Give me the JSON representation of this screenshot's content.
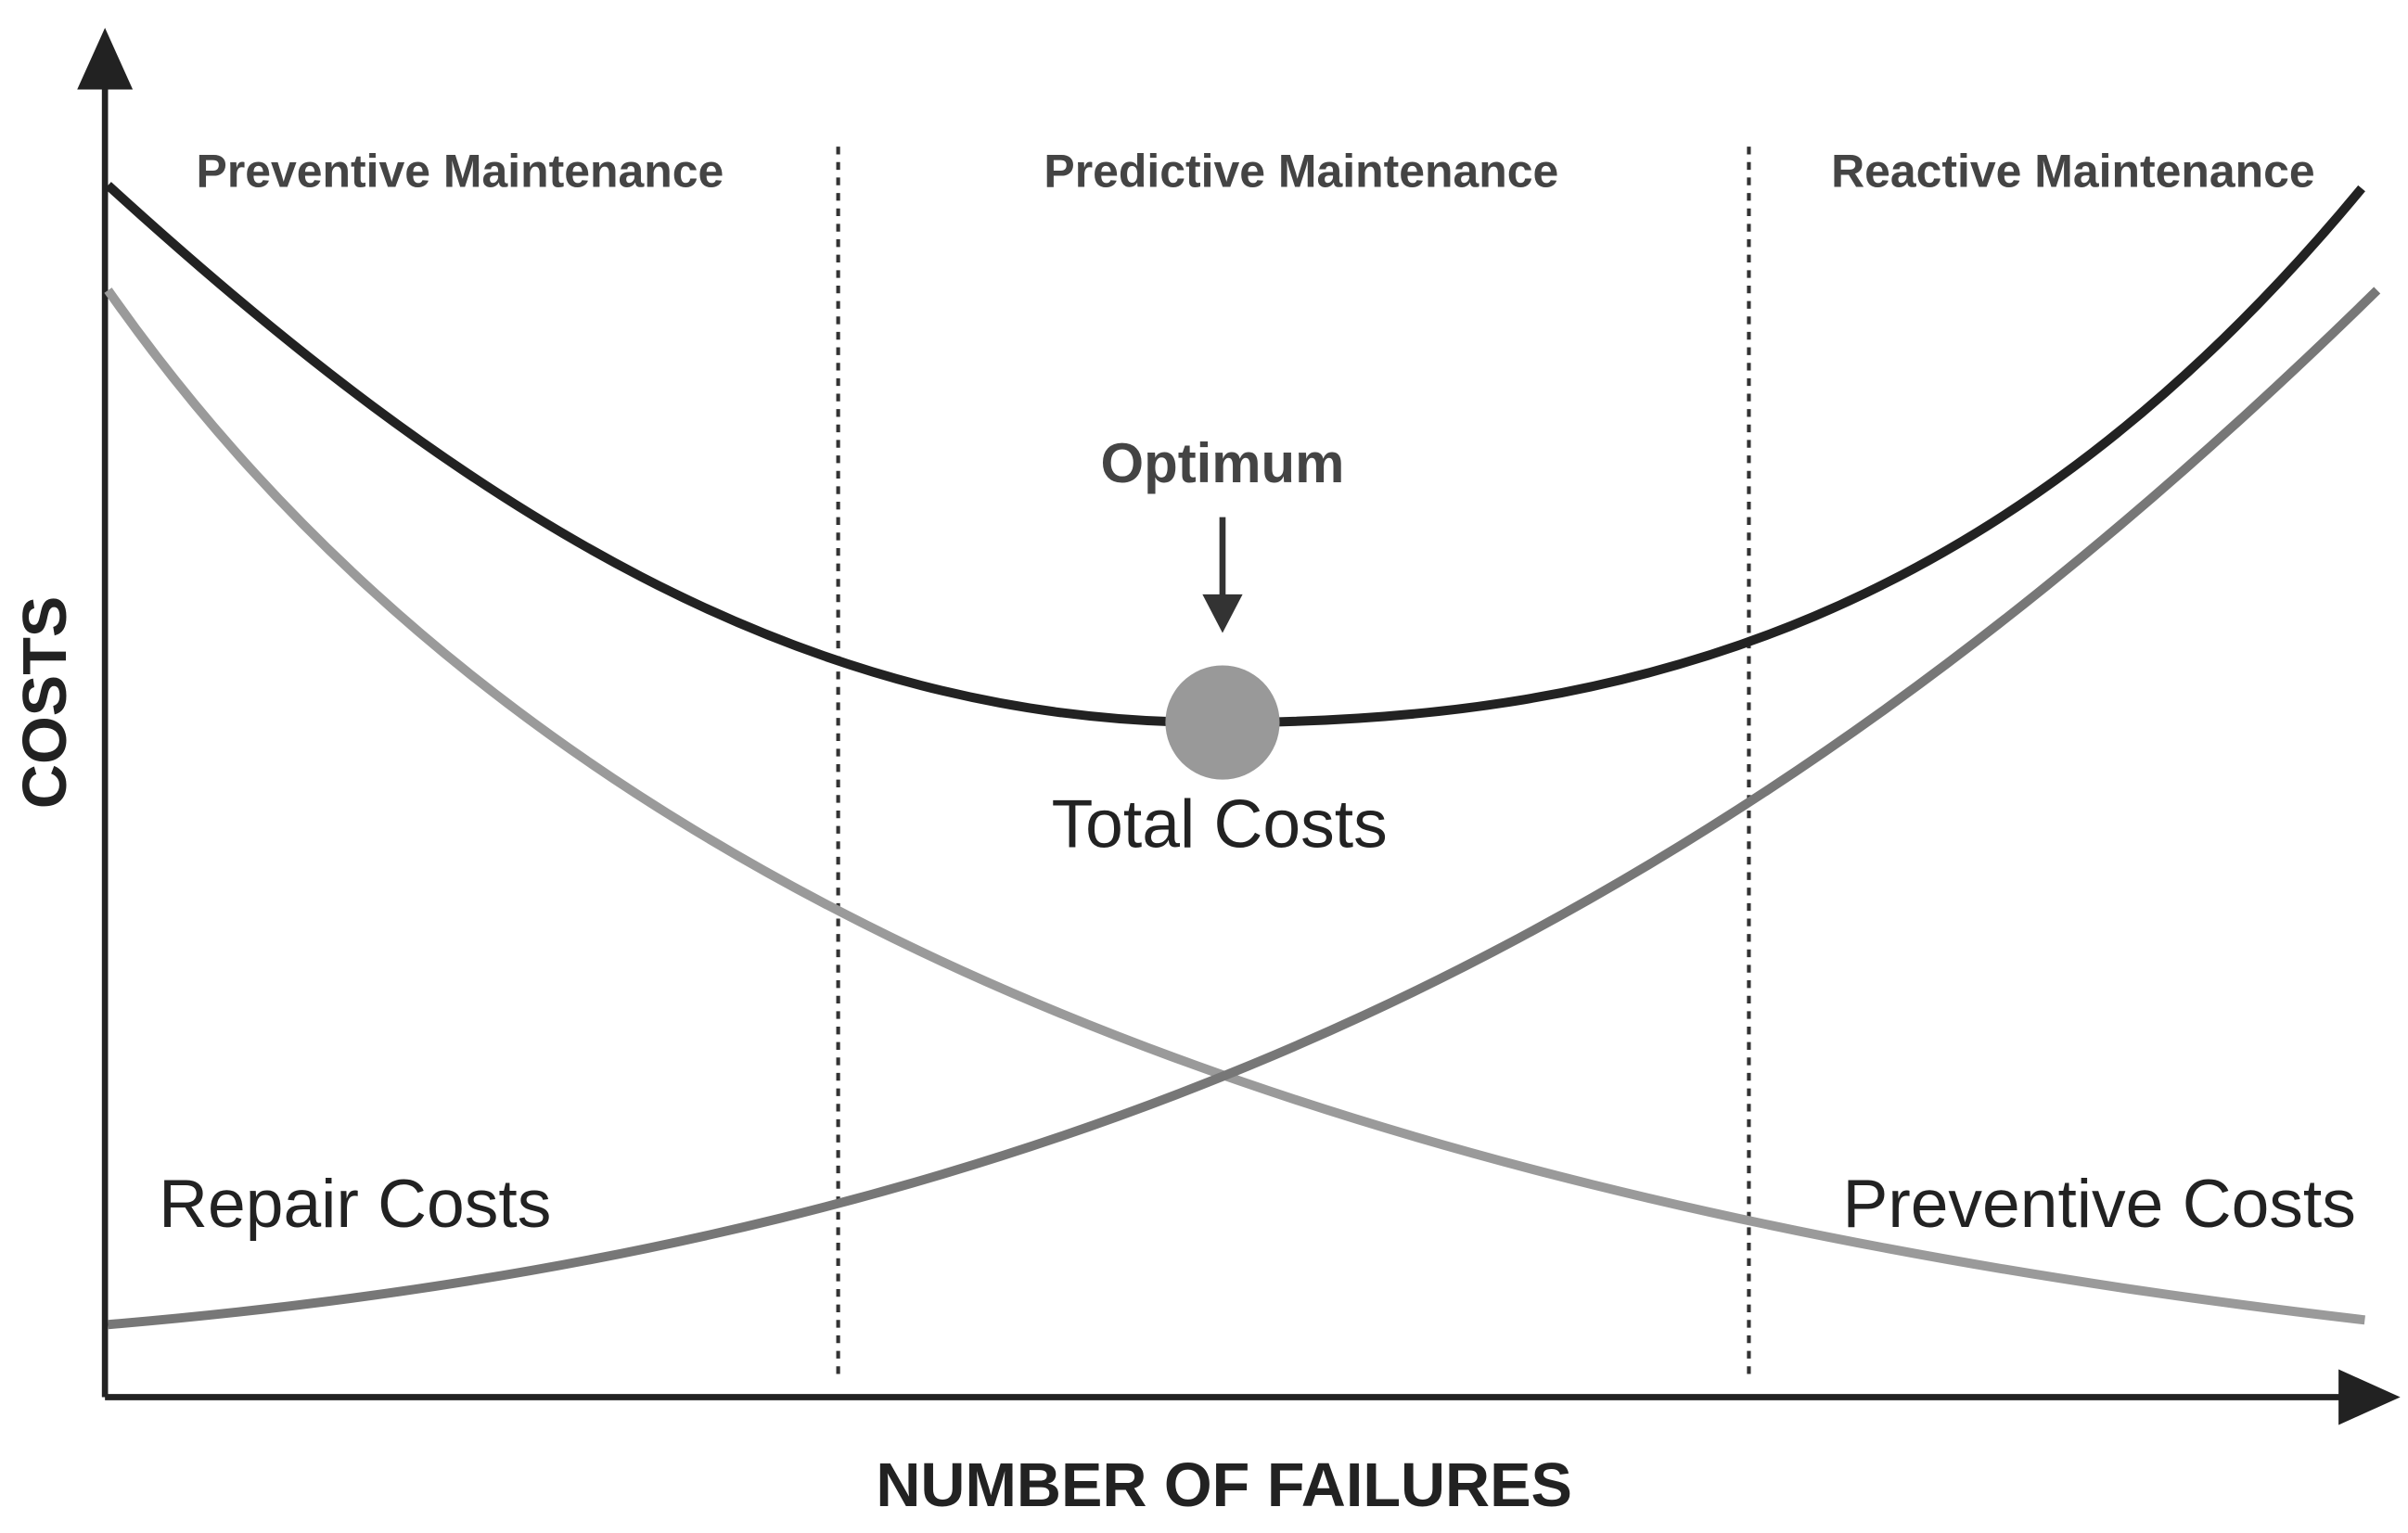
{
  "axes": {
    "y_label": "COSTS",
    "x_label": "NUMBER OF FAILURES"
  },
  "zones": [
    "Preventive Maintenance",
    "Predictive Maintenance",
    "Reactive Maintenance"
  ],
  "annotations": {
    "optimum": "Optimum",
    "total_costs": "Total Costs",
    "repair_costs": "Repair Costs",
    "preventive_costs": "Preventive Costs"
  }
}
